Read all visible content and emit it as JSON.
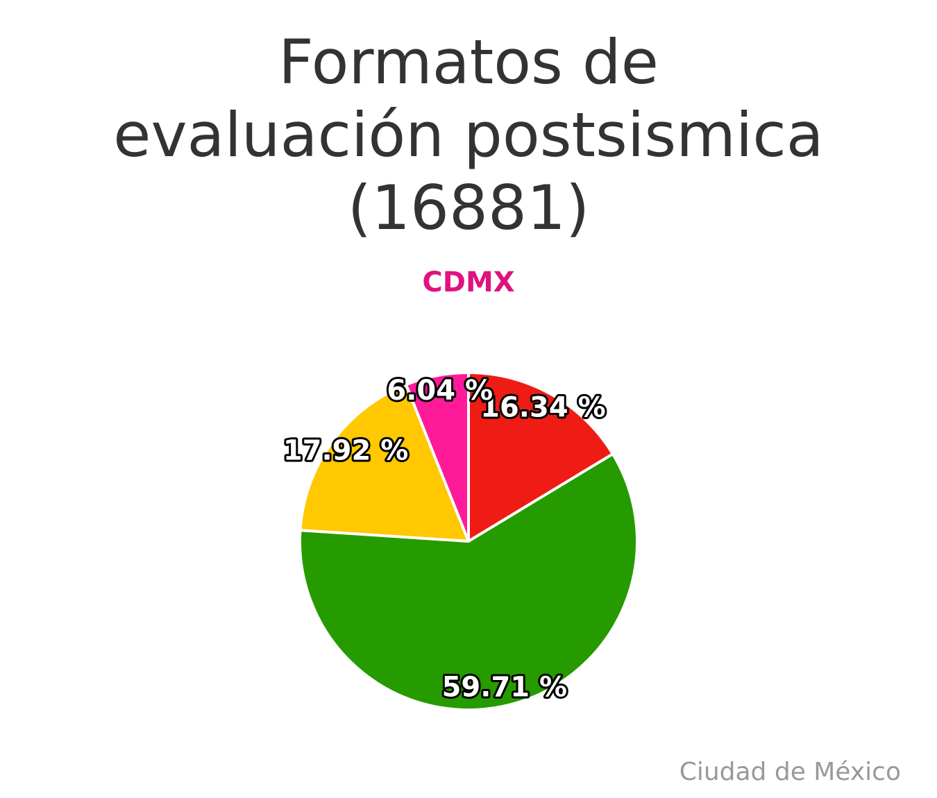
{
  "chart_data": {
    "type": "pie",
    "title": [
      "Formatos de",
      "evaluación postsismica",
      "(16881)"
    ],
    "subtitle": "CDMX",
    "credits": "Ciudad de México",
    "values": [
      16.34,
      59.71,
      17.92,
      6.04
    ],
    "value_labels": [
      "16.34 %",
      "59.71 %",
      "17.92 %",
      "6.04 %"
    ],
    "colors": [
      "#ee1c14",
      "#259b00",
      "#ffc800",
      "#ff1a9a"
    ]
  }
}
